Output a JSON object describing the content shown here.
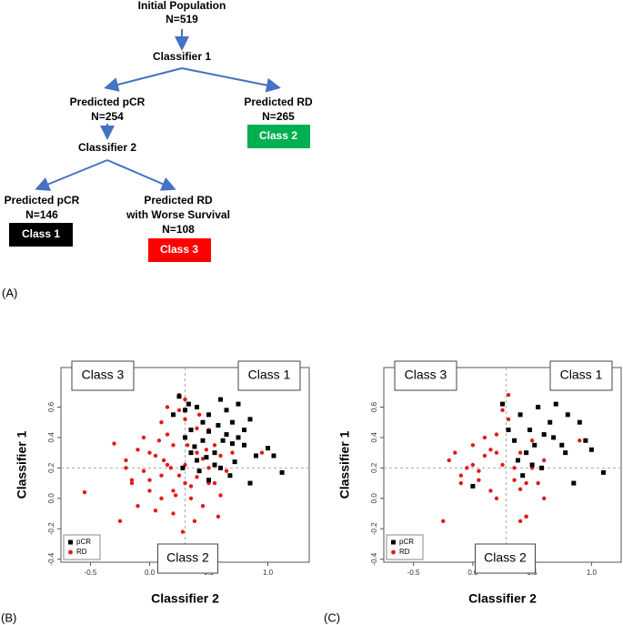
{
  "diagram": {
    "label": "(A)",
    "nodes": [
      {
        "lines": [
          "Initial Population",
          "N=519"
        ]
      },
      {
        "lines": [
          "Classifier 1"
        ]
      },
      {
        "lines": [
          "Predicted pCR",
          "N=254"
        ]
      },
      {
        "lines": [
          "Predicted RD",
          "N=265"
        ],
        "class": "Class 2"
      },
      {
        "lines": [
          "Classifier 2"
        ]
      },
      {
        "lines": [
          "Predicted pCR",
          "N=146"
        ],
        "class": "Class 1"
      },
      {
        "lines": [
          "Predicted RD",
          "with Worse Survival",
          "N=108"
        ],
        "class": "Class 3"
      }
    ]
  },
  "chart_data": [
    {
      "type": "scatter",
      "label": "(B)",
      "xlabel": "Classifier 2",
      "ylabel": "Classifier 1",
      "xlim": [
        -0.75,
        1.35
      ],
      "ylim": [
        -0.42,
        0.86
      ],
      "xticks": [
        -0.5,
        {
          "value": 0,
          "label": "0.0"
        },
        0.5,
        {
          "value": 1,
          "label": "1.0"
        }
      ],
      "yticks": [
        -0.4,
        -0.2,
        {
          "value": 0,
          "label": "0.0"
        },
        0.2,
        0.4,
        0.6
      ],
      "reference_lines": {
        "x": 0.3,
        "y": 0.2
      },
      "annotations": [
        "Class 3",
        "Class 1",
        "Class 2"
      ],
      "legend": "bottom-left",
      "series": [
        {
          "name": "pCR",
          "color": "#000000",
          "marker": "square",
          "x": [
            0.25,
            0.3,
            0.35,
            0.4,
            0.45,
            0.5,
            0.55,
            0.6,
            0.65,
            0.7,
            0.75,
            0.8,
            0.85,
            0.9,
            1.0,
            1.05,
            1.12,
            0.3,
            0.4,
            0.5,
            0.6,
            0.7,
            0.8,
            0.35,
            0.45,
            0.55,
            0.65,
            0.75,
            0.85,
            0.28,
            0.38,
            0.48,
            0.58,
            0.68,
            0.2,
            0.5,
            0.62,
            0.72,
            0.42,
            0.33
          ],
          "y": [
            0.67,
            0.58,
            0.45,
            0.6,
            0.38,
            0.55,
            0.3,
            0.65,
            0.42,
            0.5,
            0.62,
            0.35,
            0.52,
            0.28,
            0.33,
            0.28,
            0.17,
            0.4,
            0.25,
            0.44,
            0.2,
            0.36,
            0.45,
            0.3,
            0.5,
            0.22,
            0.58,
            0.4,
            0.1,
            0.2,
            0.34,
            0.27,
            0.48,
            0.15,
            0.55,
            0.12,
            0.38,
            0.24,
            0.18,
            0.62
          ]
        },
        {
          "name": "RD",
          "color": "#e31a1c",
          "marker": "circle",
          "x": [
            -0.55,
            -0.3,
            -0.25,
            -0.2,
            -0.15,
            -0.1,
            -0.05,
            0.0,
            0.05,
            0.1,
            0.15,
            0.2,
            0.25,
            0.3,
            0.35,
            0.4,
            0.45,
            0.5,
            0.55,
            0.6,
            -0.2,
            -0.1,
            0.0,
            0.1,
            0.2,
            0.3,
            0.4,
            0.5,
            0.6,
            0.7,
            -0.15,
            -0.05,
            0.05,
            0.15,
            0.25,
            0.35,
            0.45,
            0.55,
            0.65,
            0.75,
            0.0,
            0.1,
            0.2,
            0.3,
            0.4,
            0.5,
            0.12,
            0.22,
            0.32,
            0.42,
            0.08,
            0.18,
            0.28,
            0.38,
            0.48,
            0.58,
            0.95,
            0.15,
            0.3,
            0.25
          ],
          "y": [
            0.04,
            0.36,
            -0.15,
            0.25,
            0.1,
            0.32,
            0.18,
            0.05,
            0.28,
            0.0,
            0.42,
            -0.1,
            0.15,
            0.52,
            0.08,
            0.3,
            -0.05,
            0.2,
            0.1,
            0.02,
            0.2,
            -0.05,
            0.3,
            0.15,
            0.35,
            0.22,
            0.46,
            0.1,
            0.28,
            0.3,
            0.12,
            0.4,
            -0.08,
            0.22,
            0.58,
            0.0,
            0.26,
            0.35,
            0.18,
            0.4,
            0.12,
            0.5,
            0.05,
            0.65,
            0.14,
            0.45,
            0.25,
            0.02,
            0.35,
            0.55,
            0.38,
            0.2,
            -0.22,
            -0.15,
            0.32,
            -0.12,
            0.3,
            0.6,
            0.1,
            0.68
          ]
        }
      ]
    },
    {
      "type": "scatter",
      "label": "(C)",
      "xlabel": "Classifier 2",
      "ylabel": "Classifier 1",
      "xlim": [
        -0.75,
        1.25
      ],
      "ylim": [
        -0.42,
        0.86
      ],
      "xticks": [
        -0.5,
        {
          "value": 0,
          "label": "0.0"
        },
        0.5,
        {
          "value": 1,
          "label": "1.0"
        }
      ],
      "yticks": [
        -0.4,
        -0.2,
        {
          "value": 0,
          "label": "0.0"
        },
        0.2,
        0.4,
        0.6
      ],
      "reference_lines": {
        "x": 0.28,
        "y": 0.2
      },
      "annotations": [
        "Class 3",
        "Class 1",
        "Class 2"
      ],
      "legend": "bottom-left",
      "series": [
        {
          "name": "pCR",
          "color": "#000000",
          "marker": "square",
          "x": [
            0.0,
            0.25,
            0.3,
            0.35,
            0.4,
            0.45,
            0.5,
            0.55,
            0.6,
            0.65,
            0.7,
            0.75,
            0.8,
            0.85,
            0.9,
            0.95,
            1.0,
            1.1,
            0.38,
            0.48,
            0.58,
            0.68,
            0.78,
            0.42,
            0.52
          ],
          "y": [
            0.08,
            0.62,
            0.45,
            0.38,
            0.55,
            0.3,
            0.22,
            0.6,
            0.42,
            0.5,
            0.62,
            0.35,
            0.55,
            0.1,
            0.5,
            0.38,
            0.32,
            0.17,
            0.25,
            0.45,
            0.2,
            0.4,
            0.3,
            0.15,
            0.35
          ]
        },
        {
          "name": "RD",
          "color": "#e31a1c",
          "marker": "circle",
          "x": [
            -0.25,
            -0.2,
            -0.15,
            -0.1,
            -0.05,
            0.0,
            0.05,
            0.1,
            0.15,
            0.2,
            0.25,
            0.3,
            0.35,
            0.4,
            0.45,
            0.5,
            0.55,
            0.6,
            -0.1,
            0.0,
            0.1,
            0.2,
            0.3,
            0.4,
            0.5,
            0.6,
            0.05,
            0.15,
            0.25,
            0.35,
            0.45,
            0.4,
            0.45,
            0.9,
            0.2
          ],
          "y": [
            -0.15,
            0.25,
            0.3,
            0.1,
            0.2,
            0.35,
            0.18,
            0.28,
            0.05,
            0.42,
            0.22,
            0.68,
            0.12,
            0.3,
            -0.12,
            0.2,
            0.1,
            0.0,
            0.15,
            0.22,
            0.4,
            0.3,
            0.52,
            0.06,
            0.38,
            0.25,
            0.12,
            0.32,
            0.58,
            0.2,
            0.1,
            -0.15,
            -0.12,
            0.38,
            0.0
          ]
        }
      ]
    }
  ]
}
